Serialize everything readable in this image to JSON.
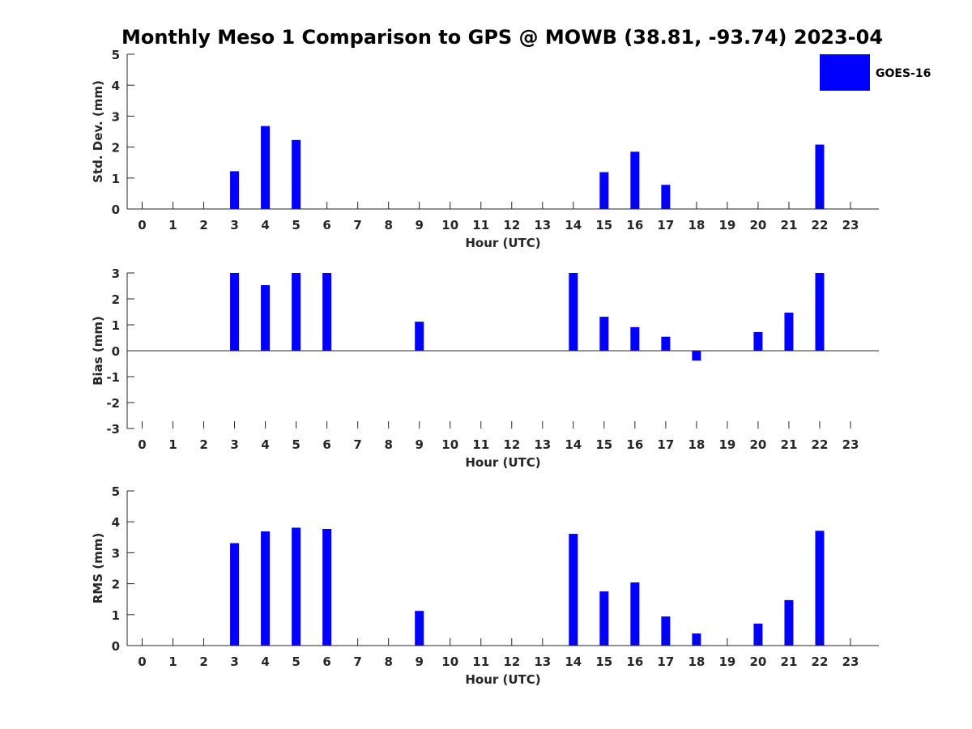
{
  "title": "Monthly Meso 1 Comparison to GPS @ MOWB (38.81, -93.74) 2023-04",
  "legend": {
    "label": "GOES-16",
    "color": "#0000ff",
    "placement": "top-right"
  },
  "chart_data": [
    {
      "type": "bar",
      "xlabel": "Hour (UTC)",
      "ylabel": "Std. Dev. (mm)",
      "ylim": [
        0,
        5
      ],
      "yticks": [
        0,
        1,
        2,
        3,
        4,
        5
      ],
      "categories": [
        "0",
        "1",
        "2",
        "3",
        "4",
        "5",
        "6",
        "7",
        "8",
        "9",
        "10",
        "11",
        "12",
        "13",
        "14",
        "15",
        "16",
        "17",
        "18",
        "19",
        "20",
        "21",
        "22",
        "23"
      ],
      "series": [
        {
          "name": "GOES-16",
          "color": "#0000ff",
          "values": [
            null,
            null,
            null,
            1.22,
            2.68,
            2.23,
            null,
            null,
            null,
            null,
            null,
            null,
            null,
            null,
            null,
            1.19,
            1.85,
            0.78,
            null,
            null,
            null,
            null,
            2.08,
            null
          ]
        }
      ]
    },
    {
      "type": "bar",
      "xlabel": "Hour (UTC)",
      "ylabel": "Bias (mm)",
      "ylim": [
        -3,
        3
      ],
      "yticks": [
        -3,
        -2,
        -1,
        0,
        1,
        2,
        3
      ],
      "categories": [
        "0",
        "1",
        "2",
        "3",
        "4",
        "5",
        "6",
        "7",
        "8",
        "9",
        "10",
        "11",
        "12",
        "13",
        "14",
        "15",
        "16",
        "17",
        "18",
        "19",
        "20",
        "21",
        "22",
        "23"
      ],
      "series": [
        {
          "name": "GOES-16",
          "color": "#0000ff",
          "values": [
            null,
            null,
            null,
            3.0,
            2.53,
            3.0,
            3.0,
            null,
            null,
            1.12,
            null,
            null,
            null,
            null,
            3.0,
            1.31,
            0.91,
            0.54,
            -0.38,
            null,
            0.72,
            1.47,
            3.0,
            null
          ]
        }
      ]
    },
    {
      "type": "bar",
      "xlabel": "Hour (UTC)",
      "ylabel": "RMS (mm)",
      "ylim": [
        0,
        5
      ],
      "yticks": [
        0,
        1,
        2,
        3,
        4,
        5
      ],
      "categories": [
        "0",
        "1",
        "2",
        "3",
        "4",
        "5",
        "6",
        "7",
        "8",
        "9",
        "10",
        "11",
        "12",
        "13",
        "14",
        "15",
        "16",
        "17",
        "18",
        "19",
        "20",
        "21",
        "22",
        "23"
      ],
      "series": [
        {
          "name": "GOES-16",
          "color": "#0000ff",
          "values": [
            null,
            null,
            null,
            3.31,
            3.69,
            3.81,
            3.77,
            null,
            null,
            1.12,
            null,
            null,
            null,
            null,
            3.61,
            1.75,
            2.04,
            0.94,
            0.39,
            null,
            0.71,
            1.47,
            3.71,
            null
          ]
        }
      ]
    }
  ]
}
